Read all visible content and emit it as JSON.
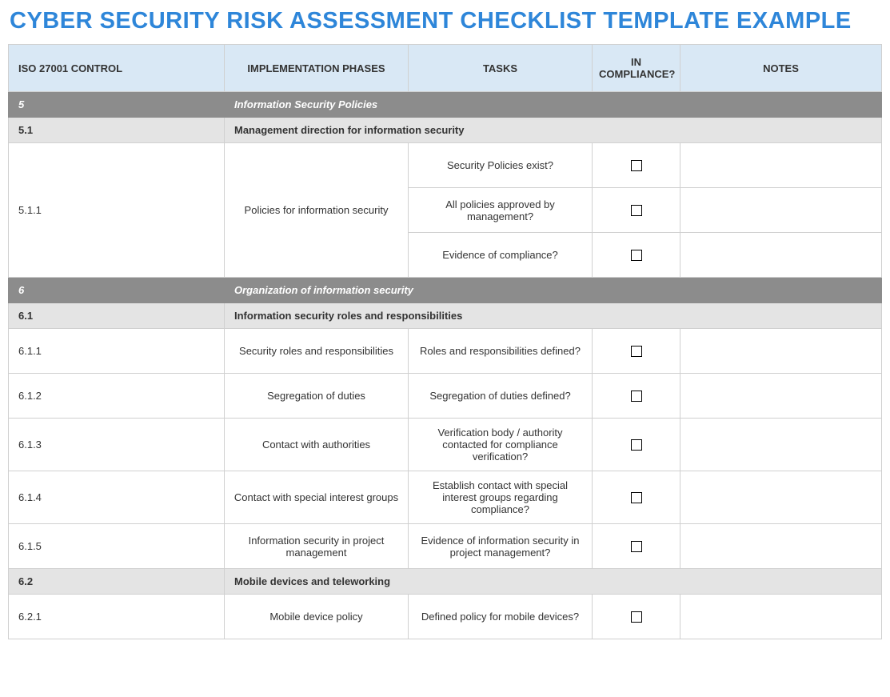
{
  "colors": {
    "title": "#2e86d9",
    "header_bg": "#d9e8f5",
    "section_bg": "#8c8c8c",
    "sub_bg": "#e4e4e4",
    "border": "#d0d0d0"
  },
  "title": "CYBER SECURITY RISK ASSESSMENT CHECKLIST TEMPLATE EXAMPLE",
  "columns": {
    "control": "ISO 27001 CONTROL",
    "phase": "IMPLEMENTATION PHASES",
    "task": "TASKS",
    "compliance": "IN COMPLIANCE?",
    "notes": "NOTES"
  },
  "rows": [
    {
      "type": "section",
      "num": "5",
      "label": "Information Security Policies"
    },
    {
      "type": "sub",
      "num": "5.1",
      "label": "Management direction for information security"
    },
    {
      "type": "item",
      "control": "5.1.1",
      "phase": "Policies for information security",
      "tasks": [
        "Security Policies exist?",
        "All policies approved by management?",
        "Evidence of compliance?"
      ],
      "checked": [
        false,
        false,
        false
      ],
      "notes": [
        "",
        "",
        ""
      ]
    },
    {
      "type": "section",
      "num": "6",
      "label": "Organization of information security"
    },
    {
      "type": "sub",
      "num": "6.1",
      "label": "Information security roles and responsibilities"
    },
    {
      "type": "item",
      "control": "6.1.1",
      "phase": "Security roles and responsibilities",
      "tasks": [
        "Roles and responsibilities defined?"
      ],
      "checked": [
        false
      ],
      "notes": [
        ""
      ]
    },
    {
      "type": "item",
      "control": "6.1.2",
      "phase": "Segregation of duties",
      "tasks": [
        "Segregation of duties defined?"
      ],
      "checked": [
        false
      ],
      "notes": [
        ""
      ]
    },
    {
      "type": "item",
      "control": "6.1.3",
      "phase": "Contact with authorities",
      "tasks": [
        "Verification body / authority contacted for compliance verification?"
      ],
      "checked": [
        false
      ],
      "notes": [
        ""
      ]
    },
    {
      "type": "item",
      "control": "6.1.4",
      "phase": "Contact with special interest groups",
      "tasks": [
        "Establish contact with special interest groups regarding compliance?"
      ],
      "checked": [
        false
      ],
      "notes": [
        ""
      ]
    },
    {
      "type": "item",
      "control": "6.1.5",
      "phase": "Information security in project management",
      "tasks": [
        "Evidence of information security in project management?"
      ],
      "checked": [
        false
      ],
      "notes": [
        ""
      ]
    },
    {
      "type": "sub",
      "num": "6.2",
      "label": "Mobile devices and teleworking"
    },
    {
      "type": "item",
      "control": "6.2.1",
      "phase": "Mobile device policy",
      "tasks": [
        "Defined policy for mobile devices?"
      ],
      "checked": [
        false
      ],
      "notes": [
        ""
      ]
    }
  ],
  "row_heights": {
    "task_min": 56
  }
}
